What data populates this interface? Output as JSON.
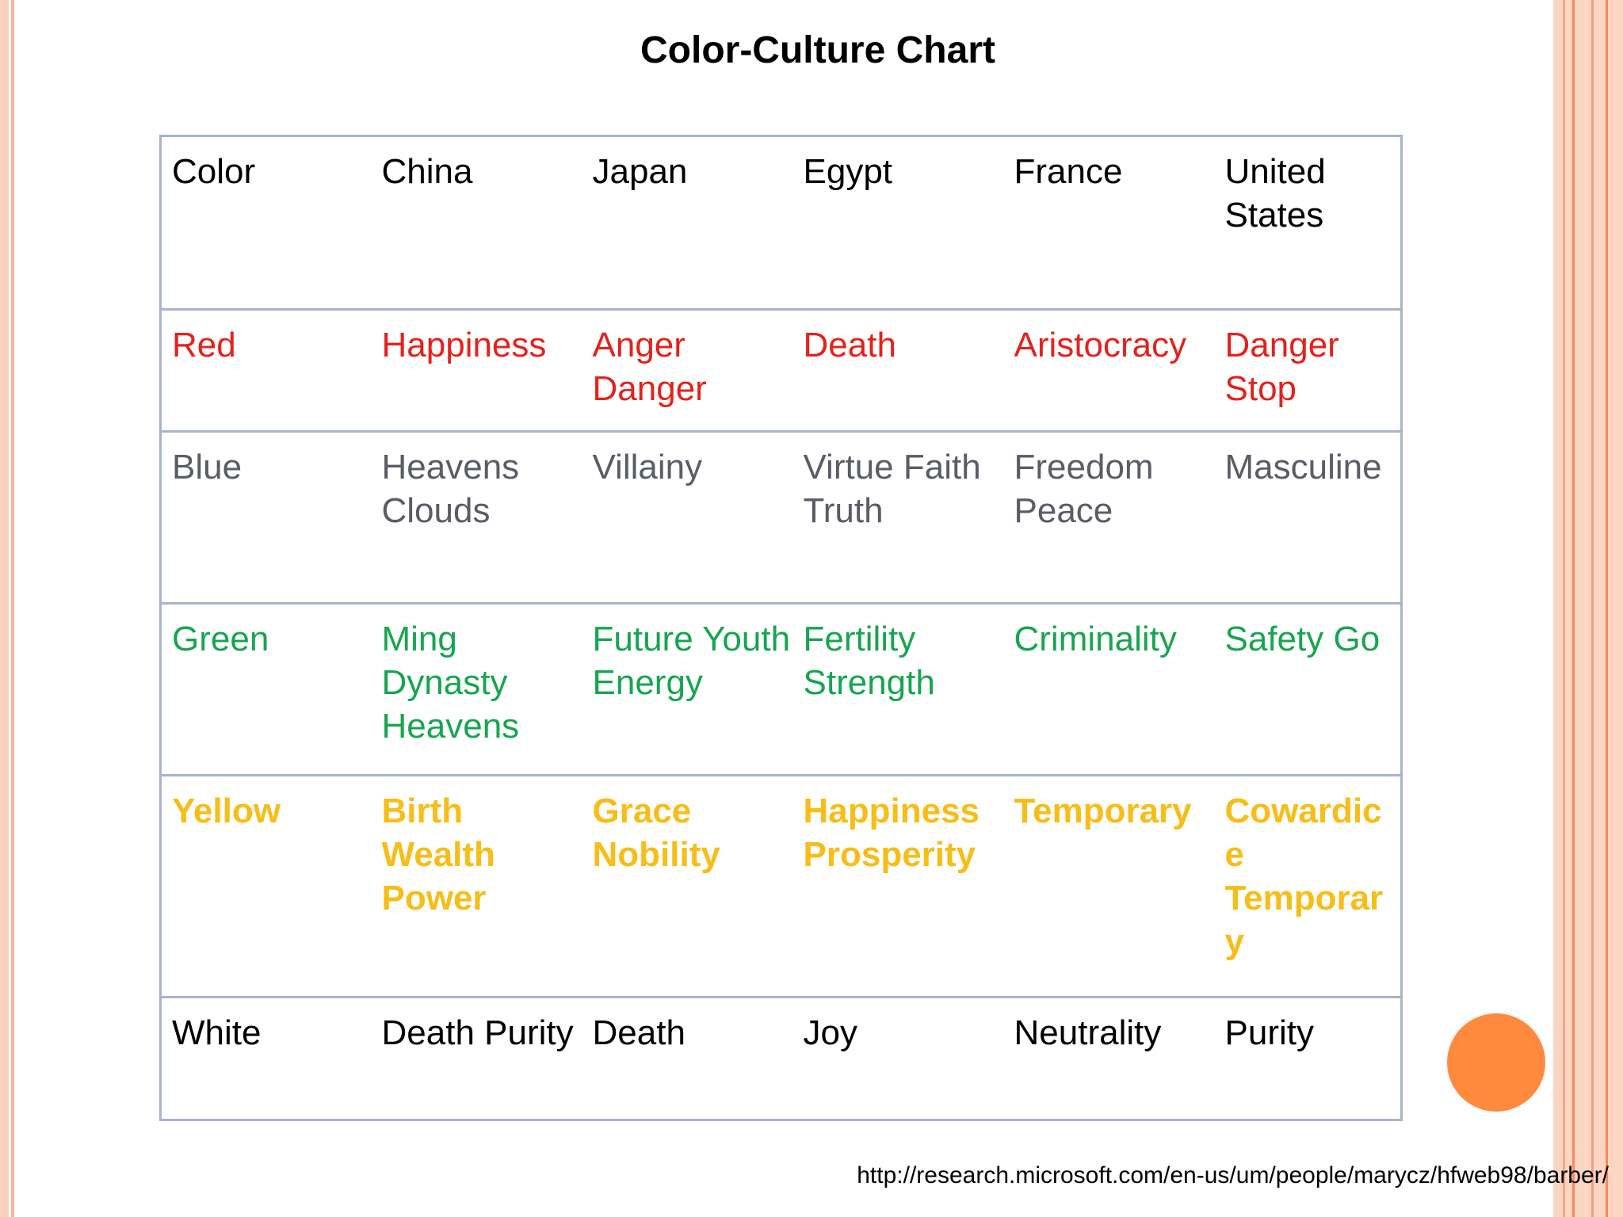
{
  "slide": {
    "title": "Color-Culture Chart",
    "source_url": "http://research.microsoft.com/en-us/um/people/marycz/hfweb98/barber/",
    "colors": {
      "accent_circle": "#ff8a3d",
      "stripe_light": "#fcd5c3",
      "stripe_dark": "#f58a5c",
      "table_border": "#a9b3cc"
    }
  },
  "table": {
    "header": [
      "Color",
      "China",
      "Japan",
      "Egypt",
      "France",
      "United States"
    ],
    "rows": [
      {
        "name": "red",
        "text_color": "#e3221c",
        "cells": [
          "Red",
          "Happiness",
          "Anger Danger",
          "Death",
          "Aristocracy",
          "Danger Stop"
        ]
      },
      {
        "name": "blue",
        "text_color": "#5a5c66",
        "cells": [
          "Blue",
          "Heavens Clouds",
          "Villainy",
          "Virtue Faith Truth",
          "Freedom Peace",
          "Masculine"
        ]
      },
      {
        "name": "green",
        "text_color": "#17a550",
        "cells": [
          "Green",
          "Ming Dynasty Heavens",
          "Future Youth Energy",
          "Fertility Strength",
          "Criminality",
          "Safety Go"
        ]
      },
      {
        "name": "yellow",
        "text_color": "#f7bd18",
        "cells": [
          "Yellow",
          "Birth Wealth Power",
          "Grace Nobility",
          "Happiness Prosperity",
          "Temporary",
          "Cowardice Temporary"
        ]
      },
      {
        "name": "white",
        "text_color": "#000000",
        "cells": [
          "White",
          "Death Purity",
          "Death",
          "Joy",
          "Neutrality",
          "Purity"
        ]
      }
    ]
  }
}
